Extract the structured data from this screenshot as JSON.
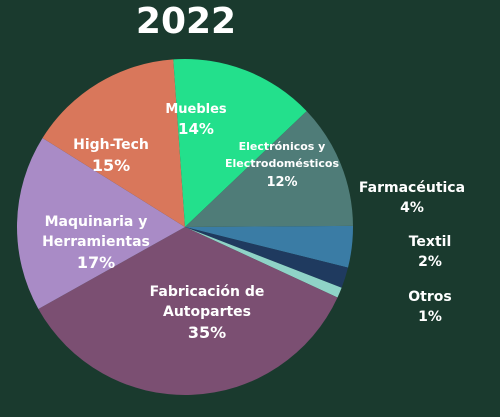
{
  "chart_data": {
    "type": "pie",
    "title": "2022",
    "slices": [
      {
        "label": "Farmacéutica",
        "value": 4,
        "display": "4%",
        "color": "#3a7ca5"
      },
      {
        "label": "Textil",
        "value": 2,
        "display": "2%",
        "color": "#1f3a5f"
      },
      {
        "label": "Otros",
        "value": 1,
        "display": "1%",
        "color": "#8fd3c7"
      },
      {
        "label": "Fabricación de Autopartes",
        "value": 35,
        "display": "35%",
        "color": "#7b4f72"
      },
      {
        "label": "Maquinaria y Herramientas",
        "value": 17,
        "display": "17%",
        "color": "#a98bc6"
      },
      {
        "label": "High-Tech",
        "value": 15,
        "display": "15%",
        "color": "#d9775b"
      },
      {
        "label": "Muebles",
        "value": 14,
        "display": "14%",
        "color": "#23e08c"
      },
      {
        "label": "Electrónicos y Electrodomésticos",
        "value": 12,
        "display": "12%",
        "color": "#4f7c78"
      }
    ]
  }
}
